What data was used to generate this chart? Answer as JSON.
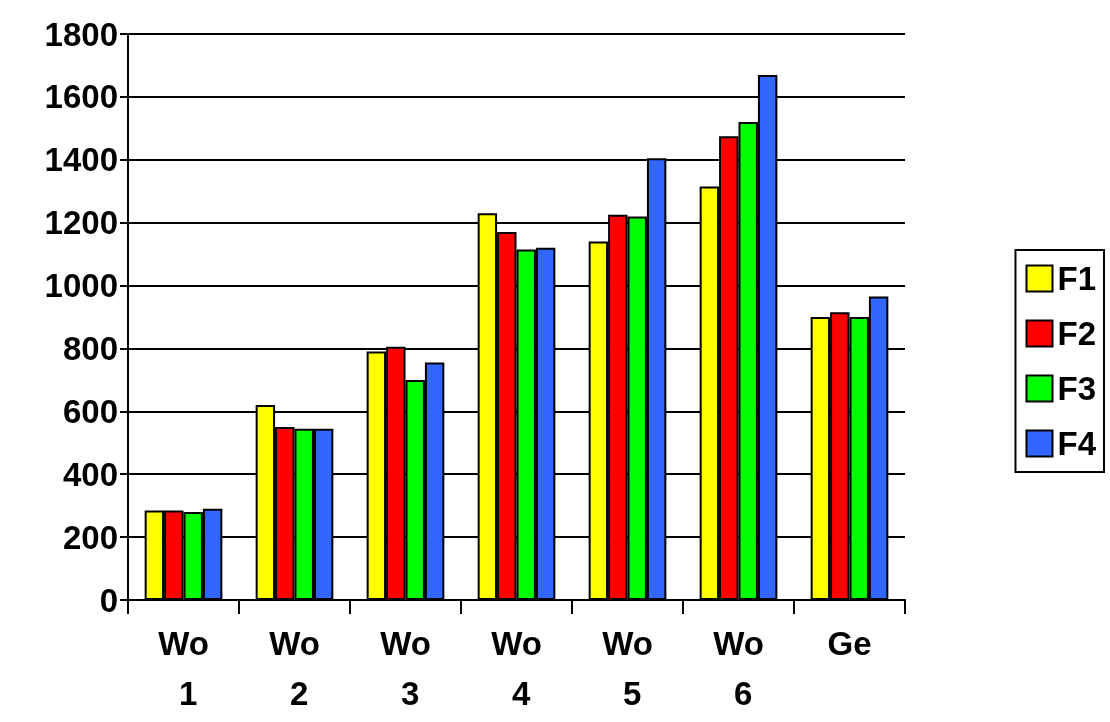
{
  "chart_data": {
    "type": "bar",
    "categories": [
      "Wo 1",
      "Wo 2",
      "Wo 3",
      "Wo 4",
      "Wo 5",
      "Wo 6",
      "Ge"
    ],
    "series": [
      {
        "name": "F1",
        "color": "#ffff00",
        "values": [
          285,
          620,
          790,
          1230,
          1140,
          1315,
          900
        ]
      },
      {
        "name": "F2",
        "color": "#ff0000",
        "values": [
          285,
          550,
          805,
          1170,
          1225,
          1475,
          915
        ]
      },
      {
        "name": "F3",
        "color": "#00ff00",
        "values": [
          280,
          545,
          700,
          1115,
          1220,
          1520,
          900
        ]
      },
      {
        "name": "F4",
        "color": "#3366ff",
        "values": [
          290,
          545,
          755,
          1120,
          1405,
          1670,
          965
        ]
      }
    ],
    "ylim": [
      0,
      1800
    ],
    "yticks": [
      0,
      200,
      400,
      600,
      800,
      1000,
      1200,
      1400,
      1600,
      1800
    ],
    "grid": "y",
    "legend": "right"
  }
}
